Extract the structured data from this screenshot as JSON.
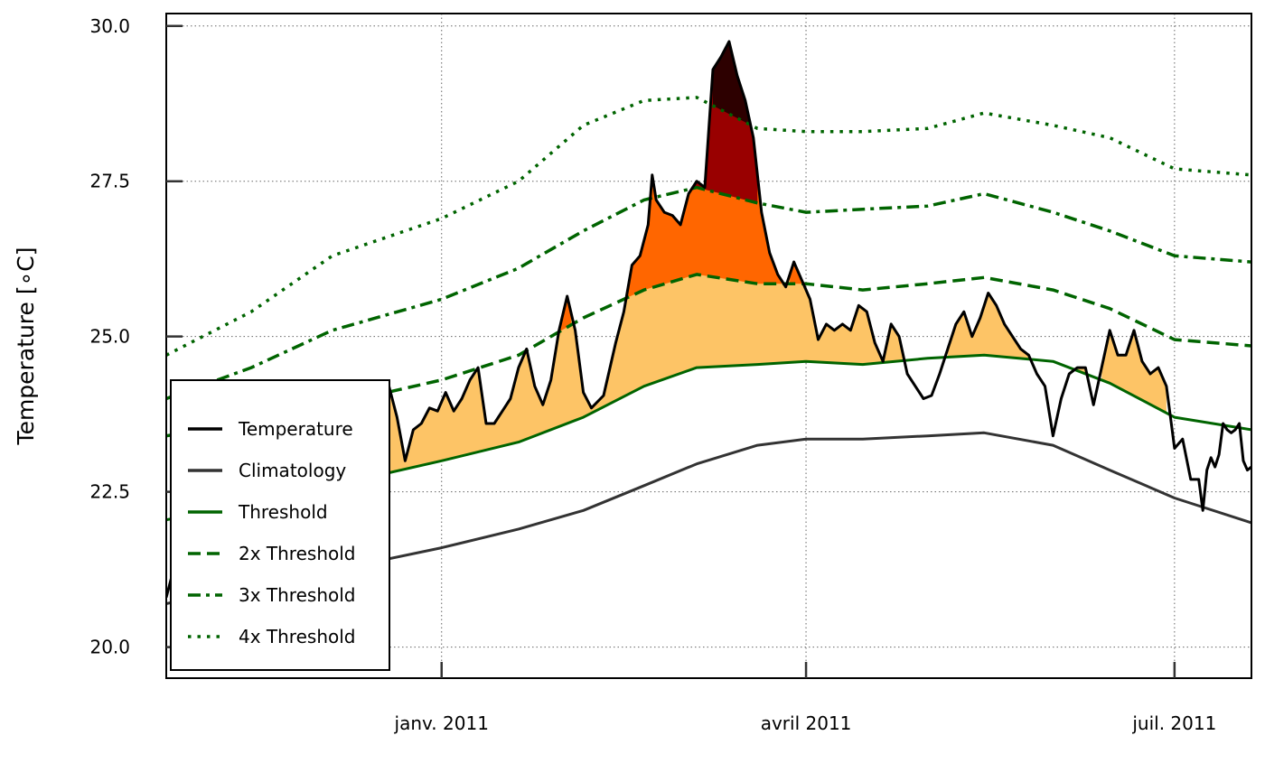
{
  "chart_data": {
    "type": "line",
    "title": "",
    "xlabel": "",
    "ylabel": "Temperature [∘C]",
    "xlim": [
      "2010-10-25",
      "2011-07-20"
    ],
    "ylim": [
      19.5,
      30.2
    ],
    "yticks": [
      20.0,
      22.5,
      25.0,
      27.5,
      30.0
    ],
    "xticks": [
      {
        "date": "2011-01-01",
        "label": "janv. 2011"
      },
      {
        "date": "2011-04-01",
        "label": "avril 2011"
      },
      {
        "date": "2011-07-01",
        "label": "juil. 2011"
      }
    ],
    "grid": true,
    "legend_position": "bottom-left",
    "series": [
      {
        "name": "Temperature",
        "color": "#000000",
        "style": "solid",
        "points": [
          [
            "2010-10-25",
            20.8
          ],
          [
            "2010-10-27",
            21.3
          ],
          [
            "2010-11-01",
            21.6
          ],
          [
            "2010-11-05",
            21.9
          ],
          [
            "2010-11-10",
            22.2
          ],
          [
            "2010-11-15",
            22.4
          ],
          [
            "2010-11-20",
            22.6
          ],
          [
            "2010-11-25",
            22.8
          ],
          [
            "2010-11-30",
            22.1
          ],
          [
            "2010-12-05",
            22.0
          ],
          [
            "2010-12-10",
            22.2
          ],
          [
            "2010-12-14",
            22.6
          ],
          [
            "2010-12-17",
            23.9
          ],
          [
            "2010-12-19",
            24.2
          ],
          [
            "2010-12-21",
            23.7
          ],
          [
            "2010-12-23",
            23.0
          ],
          [
            "2010-12-25",
            23.5
          ],
          [
            "2010-12-27",
            23.6
          ],
          [
            "2010-12-29",
            23.85
          ],
          [
            "2010-12-31",
            23.8
          ],
          [
            "2011-01-02",
            24.1
          ],
          [
            "2011-01-04",
            23.8
          ],
          [
            "2011-01-06",
            24.0
          ],
          [
            "2011-01-08",
            24.3
          ],
          [
            "2011-01-10",
            24.5
          ],
          [
            "2011-01-12",
            23.6
          ],
          [
            "2011-01-14",
            23.6
          ],
          [
            "2011-01-16",
            23.8
          ],
          [
            "2011-01-18",
            24.0
          ],
          [
            "2011-01-20",
            24.5
          ],
          [
            "2011-01-22",
            24.8
          ],
          [
            "2011-01-24",
            24.2
          ],
          [
            "2011-01-26",
            23.9
          ],
          [
            "2011-01-28",
            24.3
          ],
          [
            "2011-01-30",
            25.1
          ],
          [
            "2011-02-01",
            25.65
          ],
          [
            "2011-02-03",
            25.1
          ],
          [
            "2011-02-05",
            24.1
          ],
          [
            "2011-02-07",
            23.85
          ],
          [
            "2011-02-10",
            24.05
          ],
          [
            "2011-02-13",
            24.9
          ],
          [
            "2011-02-15",
            25.4
          ],
          [
            "2011-02-17",
            26.15
          ],
          [
            "2011-02-19",
            26.3
          ],
          [
            "2011-02-21",
            26.8
          ],
          [
            "2011-02-22",
            27.6
          ],
          [
            "2011-02-23",
            27.2
          ],
          [
            "2011-02-25",
            27.0
          ],
          [
            "2011-02-27",
            26.95
          ],
          [
            "2011-03-01",
            26.8
          ],
          [
            "2011-03-03",
            27.3
          ],
          [
            "2011-03-05",
            27.5
          ],
          [
            "2011-03-07",
            27.4
          ],
          [
            "2011-03-09",
            29.3
          ],
          [
            "2011-03-11",
            29.5
          ],
          [
            "2011-03-13",
            29.75
          ],
          [
            "2011-03-15",
            29.2
          ],
          [
            "2011-03-17",
            28.8
          ],
          [
            "2011-03-19",
            28.2
          ],
          [
            "2011-03-21",
            27.0
          ],
          [
            "2011-03-23",
            26.35
          ],
          [
            "2011-03-25",
            26.0
          ],
          [
            "2011-03-27",
            25.8
          ],
          [
            "2011-03-29",
            26.2
          ],
          [
            "2011-03-31",
            25.9
          ],
          [
            "2011-04-02",
            25.6
          ],
          [
            "2011-04-04",
            24.95
          ],
          [
            "2011-04-06",
            25.2
          ],
          [
            "2011-04-08",
            25.1
          ],
          [
            "2011-04-10",
            25.2
          ],
          [
            "2011-04-12",
            25.1
          ],
          [
            "2011-04-14",
            25.5
          ],
          [
            "2011-04-16",
            25.4
          ],
          [
            "2011-04-18",
            24.9
          ],
          [
            "2011-04-20",
            24.6
          ],
          [
            "2011-04-22",
            25.2
          ],
          [
            "2011-04-24",
            25.0
          ],
          [
            "2011-04-26",
            24.4
          ],
          [
            "2011-04-28",
            24.2
          ],
          [
            "2011-04-30",
            24.0
          ],
          [
            "2011-05-02",
            24.05
          ],
          [
            "2011-05-04",
            24.4
          ],
          [
            "2011-05-06",
            24.8
          ],
          [
            "2011-05-08",
            25.2
          ],
          [
            "2011-05-10",
            25.4
          ],
          [
            "2011-05-12",
            25.0
          ],
          [
            "2011-05-14",
            25.3
          ],
          [
            "2011-05-16",
            25.7
          ],
          [
            "2011-05-18",
            25.5
          ],
          [
            "2011-05-20",
            25.2
          ],
          [
            "2011-05-22",
            25.0
          ],
          [
            "2011-05-24",
            24.8
          ],
          [
            "2011-05-26",
            24.7
          ],
          [
            "2011-05-28",
            24.4
          ],
          [
            "2011-05-30",
            24.2
          ],
          [
            "2011-06-01",
            23.4
          ],
          [
            "2011-06-03",
            24.0
          ],
          [
            "2011-06-05",
            24.4
          ],
          [
            "2011-06-07",
            24.5
          ],
          [
            "2011-06-09",
            24.5
          ],
          [
            "2011-06-11",
            23.9
          ],
          [
            "2011-06-13",
            24.5
          ],
          [
            "2011-06-15",
            25.1
          ],
          [
            "2011-06-17",
            24.7
          ],
          [
            "2011-06-19",
            24.7
          ],
          [
            "2011-06-21",
            25.1
          ],
          [
            "2011-06-23",
            24.6
          ],
          [
            "2011-06-25",
            24.4
          ],
          [
            "2011-06-27",
            24.5
          ],
          [
            "2011-06-29",
            24.2
          ],
          [
            "2011-07-01",
            23.2
          ],
          [
            "2011-07-03",
            23.35
          ],
          [
            "2011-07-05",
            22.7
          ],
          [
            "2011-07-07",
            22.7
          ],
          [
            "2011-07-08",
            22.2
          ],
          [
            "2011-07-09",
            22.85
          ],
          [
            "2011-07-10",
            23.05
          ],
          [
            "2011-07-11",
            22.9
          ],
          [
            "2011-07-12",
            23.1
          ],
          [
            "2011-07-13",
            23.6
          ],
          [
            "2011-07-14",
            23.5
          ],
          [
            "2011-07-15",
            23.45
          ],
          [
            "2011-07-16",
            23.5
          ],
          [
            "2011-07-17",
            23.6
          ],
          [
            "2011-07-18",
            23.0
          ],
          [
            "2011-07-19",
            22.85
          ],
          [
            "2011-07-20",
            22.9
          ]
        ]
      },
      {
        "name": "Climatology",
        "color": "#333333",
        "style": "solid",
        "points": [
          [
            "2010-10-25",
            20.7
          ],
          [
            "2010-11-15",
            21.0
          ],
          [
            "2010-12-10",
            21.3
          ],
          [
            "2011-01-01",
            21.6
          ],
          [
            "2011-01-20",
            21.9
          ],
          [
            "2011-02-05",
            22.2
          ],
          [
            "2011-02-20",
            22.6
          ],
          [
            "2011-03-05",
            22.95
          ],
          [
            "2011-03-20",
            23.25
          ],
          [
            "2011-04-01",
            23.35
          ],
          [
            "2011-04-15",
            23.35
          ],
          [
            "2011-05-01",
            23.4
          ],
          [
            "2011-05-15",
            23.45
          ],
          [
            "2011-06-01",
            23.25
          ],
          [
            "2011-06-15",
            22.85
          ],
          [
            "2011-07-01",
            22.4
          ],
          [
            "2011-07-20",
            22.0
          ]
        ]
      },
      {
        "name": "Threshold",
        "color": "#006400",
        "style": "solid",
        "points": [
          [
            "2010-10-25",
            22.05
          ],
          [
            "2010-11-15",
            22.3
          ],
          [
            "2010-12-05",
            22.6
          ],
          [
            "2011-01-01",
            23.0
          ],
          [
            "2011-01-20",
            23.3
          ],
          [
            "2011-02-05",
            23.7
          ],
          [
            "2011-02-20",
            24.2
          ],
          [
            "2011-03-05",
            24.5
          ],
          [
            "2011-03-20",
            24.55
          ],
          [
            "2011-04-01",
            24.6
          ],
          [
            "2011-04-15",
            24.55
          ],
          [
            "2011-05-01",
            24.65
          ],
          [
            "2011-05-15",
            24.7
          ],
          [
            "2011-06-01",
            24.6
          ],
          [
            "2011-06-15",
            24.25
          ],
          [
            "2011-07-01",
            23.7
          ],
          [
            "2011-07-20",
            23.5
          ]
        ]
      },
      {
        "name": "2x Threshold",
        "color": "#006400",
        "style": "dashed",
        "points": [
          [
            "2010-10-25",
            23.4
          ],
          [
            "2010-11-15",
            23.6
          ],
          [
            "2010-12-05",
            23.9
          ],
          [
            "2011-01-01",
            24.3
          ],
          [
            "2011-01-20",
            24.7
          ],
          [
            "2011-02-05",
            25.3
          ],
          [
            "2011-02-20",
            25.75
          ],
          [
            "2011-03-05",
            26.0
          ],
          [
            "2011-03-20",
            25.85
          ],
          [
            "2011-04-01",
            25.85
          ],
          [
            "2011-04-15",
            25.75
          ],
          [
            "2011-05-01",
            25.85
          ],
          [
            "2011-05-15",
            25.95
          ],
          [
            "2011-06-01",
            25.75
          ],
          [
            "2011-06-15",
            25.45
          ],
          [
            "2011-07-01",
            24.95
          ],
          [
            "2011-07-20",
            24.85
          ]
        ]
      },
      {
        "name": "3x Threshold",
        "color": "#006400",
        "style": "dashdot",
        "points": [
          [
            "2010-10-25",
            24.0
          ],
          [
            "2010-11-15",
            24.5
          ],
          [
            "2010-12-05",
            25.1
          ],
          [
            "2011-01-01",
            25.6
          ],
          [
            "2011-01-20",
            26.1
          ],
          [
            "2011-02-05",
            26.7
          ],
          [
            "2011-02-20",
            27.2
          ],
          [
            "2011-03-05",
            27.4
          ],
          [
            "2011-03-20",
            27.15
          ],
          [
            "2011-04-01",
            27.0
          ],
          [
            "2011-04-15",
            27.05
          ],
          [
            "2011-05-01",
            27.1
          ],
          [
            "2011-05-15",
            27.3
          ],
          [
            "2011-06-01",
            27.0
          ],
          [
            "2011-06-15",
            26.7
          ],
          [
            "2011-07-01",
            26.3
          ],
          [
            "2011-07-20",
            26.2
          ]
        ]
      },
      {
        "name": "4x Threshold",
        "color": "#006400",
        "style": "dotted",
        "points": [
          [
            "2010-10-25",
            24.7
          ],
          [
            "2010-11-15",
            25.4
          ],
          [
            "2010-12-05",
            26.3
          ],
          [
            "2011-01-01",
            26.9
          ],
          [
            "2011-01-20",
            27.5
          ],
          [
            "2011-02-05",
            28.4
          ],
          [
            "2011-02-20",
            28.8
          ],
          [
            "2011-03-05",
            28.85
          ],
          [
            "2011-03-20",
            28.35
          ],
          [
            "2011-04-01",
            28.3
          ],
          [
            "2011-04-15",
            28.3
          ],
          [
            "2011-05-01",
            28.35
          ],
          [
            "2011-05-15",
            28.6
          ],
          [
            "2011-06-01",
            28.4
          ],
          [
            "2011-06-15",
            28.2
          ],
          [
            "2011-07-01",
            27.7
          ],
          [
            "2011-07-20",
            27.6
          ]
        ]
      }
    ],
    "fills": [
      {
        "between": [
          "Temperature",
          "Threshold"
        ],
        "color": "#fdc466"
      },
      {
        "between": [
          "Temperature",
          "2x Threshold"
        ],
        "color": "#ff6600"
      },
      {
        "between": [
          "Temperature",
          "3x Threshold"
        ],
        "color": "#990000"
      },
      {
        "between": [
          "Temperature",
          "4x Threshold"
        ],
        "color": "#2d0000"
      }
    ]
  }
}
